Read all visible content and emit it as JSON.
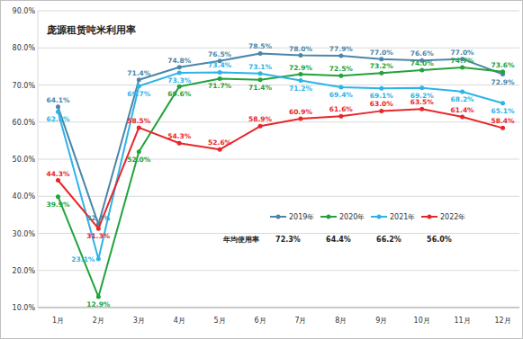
{
  "chart_data": {
    "type": "line",
    "title": "庞源租赁吨米利用率",
    "annotation": "年均使用率",
    "categories": [
      "1月",
      "2月",
      "3月",
      "4月",
      "5月",
      "6月",
      "7月",
      "8月",
      "9月",
      "10月",
      "11月",
      "12月"
    ],
    "series": [
      {
        "name": "2019年",
        "color": "#4b86a8",
        "marker": "circle",
        "values": [
          64.1,
          32.4,
          71.4,
          74.8,
          76.5,
          78.5,
          78.0,
          77.9,
          77.0,
          76.6,
          77.0,
          72.9
        ],
        "value_labels": [
          "64.1%",
          "32.4%",
          "71.4%",
          "74.8%",
          "76.5%",
          "78.5%",
          "78.0%",
          "77.9%",
          "77.0%",
          "76.6%",
          "77.0%",
          "72.9%"
        ],
        "annual_average": 72.3,
        "annual_average_label": "72.3%"
      },
      {
        "name": "2020年",
        "color": "#22a33c",
        "marker": "circle",
        "values": [
          39.9,
          12.9,
          52.0,
          69.6,
          71.7,
          71.4,
          72.9,
          72.5,
          73.2,
          74.0,
          74.7,
          73.6
        ],
        "value_labels": [
          "39.9%",
          "12.9%",
          "52.0%",
          "69.6%",
          "71.7%",
          "71.4%",
          "72.9%",
          "72.5%",
          "73.2%",
          "74.0%",
          "74.7%",
          "73.6%"
        ],
        "annual_average": 64.4,
        "annual_average_label": "64.4%"
      },
      {
        "name": "2021年",
        "color": "#2db3e8",
        "marker": "circle",
        "values": [
          62.8,
          23.1,
          69.7,
          73.3,
          73.4,
          73.1,
          71.2,
          69.4,
          69.1,
          69.2,
          68.2,
          65.1
        ],
        "value_labels": [
          "62.8%",
          "23.1%",
          "69.7%",
          "73.3%",
          "73.4%",
          "73.1%",
          "71.2%",
          "69.4%",
          "69.1%",
          "69.2%",
          "68.2%",
          "65.1%"
        ],
        "annual_average": 66.2,
        "annual_average_label": "66.2%"
      },
      {
        "name": "2022年",
        "color": "#e8262a",
        "marker": "circle",
        "values": [
          44.3,
          31.3,
          58.5,
          54.3,
          52.6,
          58.9,
          60.9,
          61.6,
          63.0,
          63.5,
          61.4,
          58.4
        ],
        "value_labels": [
          "44.3%",
          "31.3%",
          "58.5%",
          "54.3%",
          "52.6%",
          "58.9%",
          "60.9%",
          "61.6%",
          "63.0%",
          "63.5%",
          "61.4%",
          "58.4%"
        ],
        "annual_average": 56.0,
        "annual_average_label": "56.0%"
      }
    ],
    "ylim": [
      10,
      90
    ],
    "yticks": [
      {
        "value": 10,
        "label": "10.0%"
      },
      {
        "value": 20,
        "label": "20.0%"
      },
      {
        "value": 30,
        "label": "30.0%"
      },
      {
        "value": 40,
        "label": "40.0%"
      },
      {
        "value": 50,
        "label": "50.0%"
      },
      {
        "value": 60,
        "label": "60.0%"
      },
      {
        "value": 70,
        "label": "70.0%"
      },
      {
        "value": 80,
        "label": "80.0%"
      },
      {
        "value": 90,
        "label": "90.0%"
      }
    ],
    "grid": true,
    "data_labels": true,
    "legend": "center"
  }
}
